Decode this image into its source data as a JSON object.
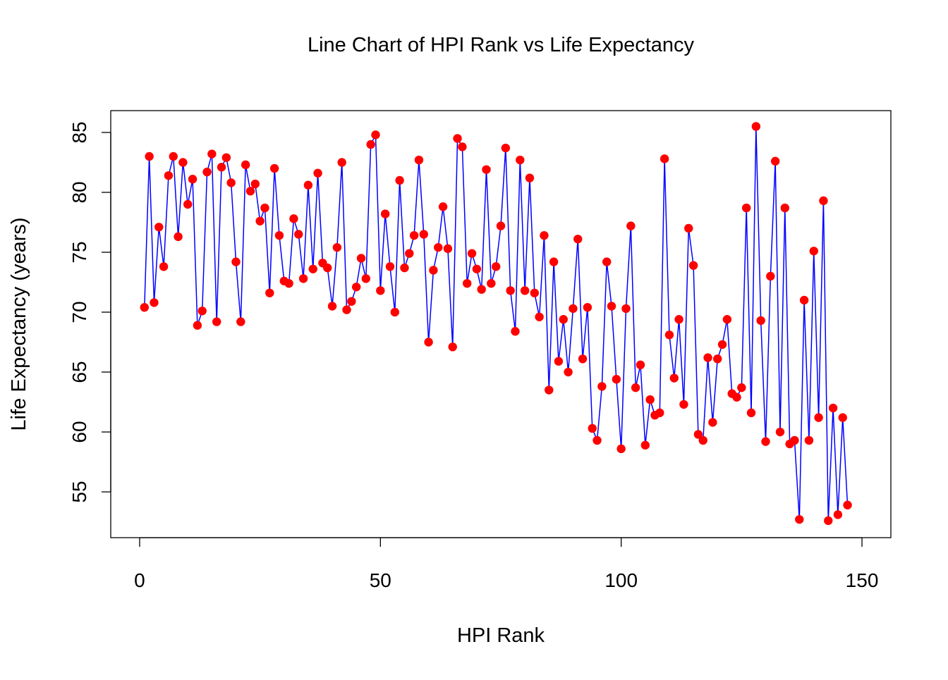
{
  "chart_data": {
    "type": "line",
    "title": "Line Chart of HPI Rank vs Life Expectancy",
    "xlabel": "HPI Rank",
    "ylabel": "Life Expectancy (years)",
    "xlim": [
      0,
      150
    ],
    "ylim": [
      52.5,
      85.5
    ],
    "x_ticks": [
      0,
      50,
      100,
      150
    ],
    "y_ticks": [
      55,
      60,
      65,
      70,
      75,
      80,
      85
    ],
    "grid": false,
    "legend": "none",
    "line_color": "#0000FF",
    "marker_color": "#FF0000",
    "series": [
      {
        "x": [
          1,
          2,
          3,
          4,
          5,
          6,
          7,
          8,
          9,
          10,
          11,
          12,
          13,
          14,
          15,
          16,
          17,
          18,
          19,
          20,
          21,
          22,
          23,
          24,
          25,
          26,
          27,
          28,
          29,
          30,
          31,
          32,
          33,
          34,
          35,
          36,
          37,
          38,
          39,
          40,
          41,
          42,
          43,
          44,
          45,
          46,
          47,
          48,
          49,
          50,
          51,
          52,
          53,
          54,
          55,
          56,
          57,
          58,
          59,
          60,
          61,
          62,
          63,
          64,
          65,
          66,
          67,
          68,
          69,
          70,
          71,
          72,
          73,
          74,
          75,
          76,
          77,
          78,
          79,
          80,
          81,
          82,
          83,
          84,
          85,
          86,
          87,
          88,
          89,
          90,
          91,
          92,
          93,
          94,
          95,
          96,
          97,
          98,
          99,
          100,
          101,
          102,
          103,
          104,
          105,
          106,
          107,
          108,
          109,
          110,
          111,
          112,
          113,
          114,
          115,
          116,
          117,
          118,
          119,
          120,
          121,
          122,
          123,
          124,
          125,
          126,
          127,
          128,
          129,
          130,
          131,
          132,
          133,
          134,
          135,
          136,
          137,
          138,
          139,
          140,
          141,
          142,
          143,
          144,
          145,
          146,
          147
        ],
        "y": [
          70.4,
          83.0,
          70.8,
          77.1,
          73.8,
          81.4,
          83.0,
          76.3,
          82.5,
          79.0,
          81.1,
          68.9,
          70.1,
          81.7,
          83.2,
          69.2,
          82.1,
          82.9,
          80.8,
          74.2,
          69.2,
          82.3,
          80.1,
          80.7,
          77.6,
          78.7,
          71.6,
          82.0,
          76.4,
          72.6,
          72.4,
          77.8,
          76.5,
          72.8,
          80.6,
          73.6,
          81.6,
          74.1,
          73.7,
          70.5,
          75.4,
          82.5,
          70.2,
          70.9,
          72.1,
          74.5,
          72.8,
          84.0,
          84.8,
          71.8,
          78.2,
          73.8,
          70.0,
          81.0,
          73.7,
          74.9,
          76.4,
          82.7,
          76.5,
          67.5,
          73.5,
          75.4,
          78.8,
          75.3,
          67.1,
          84.5,
          83.8,
          72.4,
          74.9,
          73.6,
          71.9,
          81.9,
          72.4,
          73.8,
          77.2,
          83.7,
          71.8,
          68.4,
          82.7,
          71.8,
          81.2,
          71.6,
          69.6,
          76.4,
          63.5,
          74.2,
          65.9,
          69.4,
          65.0,
          70.3,
          76.1,
          66.1,
          70.4,
          60.3,
          59.3,
          63.8,
          74.2,
          70.5,
          64.4,
          58.6,
          70.3,
          77.2,
          63.7,
          65.6,
          58.9,
          62.7,
          61.4,
          61.6,
          82.8,
          68.1,
          64.5,
          69.4,
          62.3,
          77.0,
          73.9,
          59.8,
          59.3,
          66.2,
          60.8,
          66.1,
          67.3,
          69.4,
          63.2,
          62.9,
          63.7,
          78.7,
          61.6,
          85.5,
          69.3,
          59.2,
          73.0,
          82.6,
          60.0,
          78.7,
          59.0,
          59.3,
          52.7,
          71.0,
          59.3,
          75.1,
          61.2,
          79.3,
          52.6,
          62.0,
          53.1,
          61.2,
          53.9
        ]
      }
    ]
  }
}
